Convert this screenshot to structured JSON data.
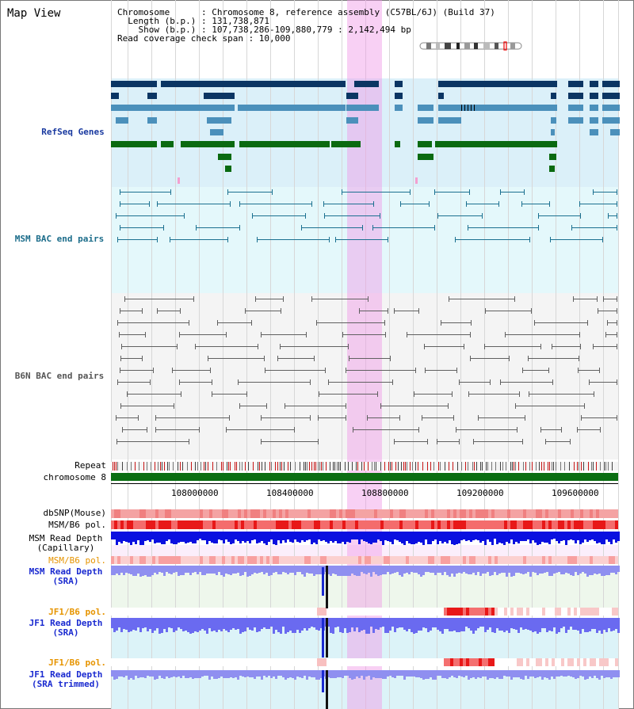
{
  "panel_title": "Map View",
  "info": {
    "line1": "Chromosome      : Chromosome 8, reference assembly (C57BL/6J) (Build 37)",
    "line2": "  Length (b.p.) : 131,738,871",
    "line3": "    Show (b.p.) : 107,738,286-109,880,779 : 2,142,494 bp",
    "line4": "Read coverage check span : 10,000"
  },
  "tracks": {
    "refseq": "RefSeq Genes",
    "msm_bac": "MSM BAC end pairs",
    "b6n_bac": "B6N BAC end pairs",
    "repeat": "Repeat",
    "chromosome": "chromosome 8",
    "dbsnp": "dbSNP(Mouse)",
    "msm_b6_pol": "MSM/B6 pol.",
    "msm_read_depth_cap": "MSM Read Depth\n(Capillary)",
    "msm_b6_pol2": "MSM/B6 pol.",
    "msm_read_depth_sra": "MSM Read Depth\n(SRA)",
    "jf1_b6_pol": "JF1/B6 pol.",
    "jf1_read_depth_sra": "JF1 Read Depth\n(SRA)",
    "jf1_b6_pol2": "JF1/B6 pol.",
    "jf1_read_depth_trim": "JF1 Read Depth\n(SRA trimmed)"
  },
  "axis_ticks": [
    "108000000",
    "108400000",
    "108800000",
    "109200000",
    "109600000"
  ],
  "colors": {
    "refseq_bg": "#dbf0f9",
    "msm_bg": "#e4f8fb",
    "b6n_bg": "#f4f4f4",
    "highlight": "#f3bff0",
    "gene_dark": "#0b3563",
    "gene_mid": "#4b90bb",
    "gene_green": "#0a6a10",
    "chrom_green": "#0b6e12",
    "depth_blue": "#0a10e0",
    "sra_blue": "#8f8ff0"
  }
}
